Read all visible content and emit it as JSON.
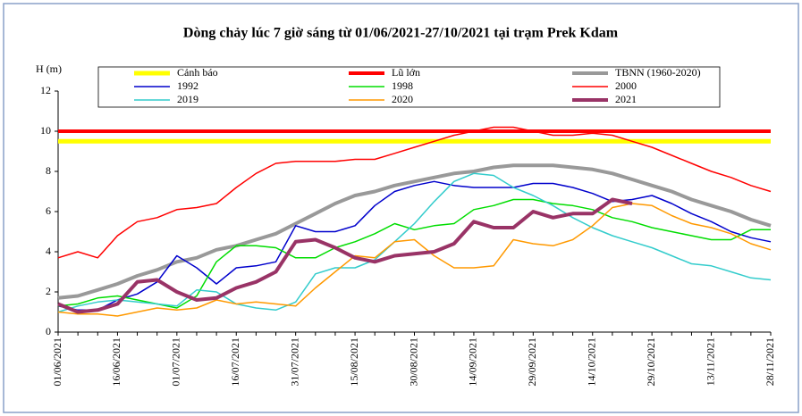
{
  "chart_data": {
    "type": "line",
    "title": "Dòng chảy lúc 7 giờ sáng từ 01/06/2021-27/10/2021 tại trạm Prek Kdam",
    "y_label": "H (m)",
    "categories": [
      "01/06/2021",
      null,
      null,
      "16/06/2021",
      null,
      null,
      "01/07/2021",
      null,
      null,
      "16/07/2021",
      null,
      null,
      "31/07/2021",
      null,
      null,
      "15/08/2021",
      null,
      null,
      "30/08/2021",
      null,
      null,
      "14/09/2021",
      null,
      null,
      "29/09/2021",
      null,
      null,
      "14/10/2021",
      null,
      null,
      "29/10/2021",
      null,
      null,
      "13/11/2021",
      null,
      null,
      "28/11/2021"
    ],
    "ylim": [
      0,
      12
    ],
    "yticks": [
      0,
      2,
      4,
      6,
      8,
      10,
      12
    ],
    "series": [
      {
        "name": "Cảnh báo",
        "color": "#ffff00",
        "values": [
          9.5,
          9.5,
          9.5,
          9.5,
          9.5,
          9.5,
          9.5,
          9.5,
          9.5,
          9.5,
          9.5,
          9.5,
          9.5,
          9.5,
          9.5,
          9.5,
          9.5,
          9.5,
          9.5,
          9.5,
          9.5,
          9.5,
          9.5,
          9.5,
          9.5,
          9.5,
          9.5,
          9.5,
          9.5,
          9.5,
          9.5,
          9.5,
          9.5,
          9.5,
          9.5,
          9.5,
          9.5
        ]
      },
      {
        "name": "Lũ lớn",
        "color": "#ff0000",
        "values": [
          10,
          10,
          10,
          10,
          10,
          10,
          10,
          10,
          10,
          10,
          10,
          10,
          10,
          10,
          10,
          10,
          10,
          10,
          10,
          10,
          10,
          10,
          10,
          10,
          10,
          10,
          10,
          10,
          10,
          10,
          10,
          10,
          10,
          10,
          10,
          10,
          10
        ]
      },
      {
        "name": "TBNN (1960-2020)",
        "color": "#999999",
        "values": [
          1.7,
          1.8,
          2.1,
          2.4,
          2.8,
          3.1,
          3.5,
          3.7,
          4.1,
          4.3,
          4.6,
          4.9,
          5.4,
          5.9,
          6.4,
          6.8,
          7.0,
          7.3,
          7.5,
          7.7,
          7.9,
          8.0,
          8.2,
          8.3,
          8.3,
          8.3,
          8.2,
          8.1,
          7.9,
          7.6,
          7.3,
          7.0,
          6.6,
          6.3,
          6.0,
          5.6,
          5.3
        ]
      },
      {
        "name": "1992",
        "color": "#0000cc",
        "values": [
          1.3,
          1.1,
          1.1,
          1.6,
          1.9,
          2.5,
          3.8,
          3.2,
          2.4,
          3.2,
          3.3,
          3.5,
          5.3,
          5.0,
          5.0,
          5.3,
          6.3,
          7.0,
          7.3,
          7.5,
          7.3,
          7.2,
          7.2,
          7.2,
          7.4,
          7.4,
          7.2,
          6.9,
          6.5,
          6.6,
          6.8,
          6.4,
          5.9,
          5.5,
          5.0,
          4.7,
          4.5
        ]
      },
      {
        "name": "1998",
        "color": "#00dd00",
        "values": [
          1.3,
          1.4,
          1.7,
          1.8,
          1.6,
          1.4,
          1.2,
          1.8,
          3.5,
          4.3,
          4.3,
          4.2,
          3.7,
          3.7,
          4.2,
          4.5,
          4.9,
          5.4,
          5.1,
          5.3,
          5.4,
          6.1,
          6.3,
          6.6,
          6.6,
          6.4,
          6.3,
          6.1,
          5.7,
          5.5,
          5.2,
          5.0,
          4.8,
          4.6,
          4.6,
          5.1,
          5.1
        ]
      },
      {
        "name": "2000",
        "color": "#ff0000",
        "values": [
          3.7,
          4.0,
          3.7,
          4.8,
          5.5,
          5.7,
          6.1,
          6.2,
          6.4,
          7.2,
          7.9,
          8.4,
          8.5,
          8.5,
          8.5,
          8.6,
          8.6,
          8.9,
          9.2,
          9.5,
          9.8,
          10.0,
          10.2,
          10.2,
          10.0,
          9.8,
          9.8,
          9.9,
          9.8,
          9.5,
          9.2,
          8.8,
          8.4,
          8.0,
          7.7,
          7.3,
          7.0
        ]
      },
      {
        "name": "2019",
        "color": "#33cccc",
        "values": [
          1.0,
          1.3,
          1.5,
          1.6,
          1.5,
          1.4,
          1.3,
          2.1,
          2.0,
          1.4,
          1.2,
          1.1,
          1.5,
          2.9,
          3.2,
          3.2,
          3.6,
          4.5,
          5.4,
          6.5,
          7.5,
          7.9,
          7.8,
          7.2,
          6.8,
          6.3,
          5.7,
          5.2,
          4.8,
          4.5,
          4.2,
          3.8,
          3.4,
          3.3,
          3.0,
          2.7,
          2.6
        ]
      },
      {
        "name": "2020",
        "color": "#ff9900",
        "values": [
          1.0,
          0.9,
          0.9,
          0.8,
          1.0,
          1.2,
          1.1,
          1.2,
          1.6,
          1.4,
          1.5,
          1.4,
          1.3,
          2.2,
          3.0,
          3.8,
          3.7,
          4.5,
          4.6,
          3.8,
          3.2,
          3.2,
          3.3,
          4.6,
          4.4,
          4.3,
          4.6,
          5.3,
          6.2,
          6.4,
          6.3,
          5.8,
          5.4,
          5.2,
          4.9,
          4.4,
          4.1
        ]
      },
      {
        "name": "2021",
        "color": "#993366",
        "values": [
          1.4,
          1.0,
          1.1,
          1.4,
          2.5,
          2.6,
          2.0,
          1.6,
          1.7,
          2.2,
          2.5,
          3.0,
          4.5,
          4.6,
          4.2,
          3.7,
          3.5,
          3.8,
          3.9,
          4.0,
          4.4,
          5.5,
          5.2,
          5.2,
          6.0,
          5.7,
          5.9,
          5.9,
          6.6,
          6.4,
          null,
          null,
          null,
          null,
          null,
          null,
          null
        ]
      }
    ]
  }
}
